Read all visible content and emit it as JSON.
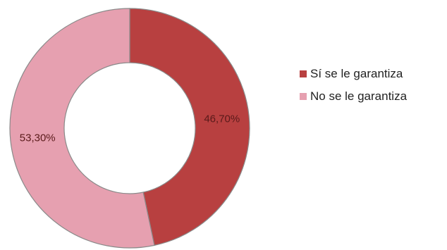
{
  "chart_data": {
    "type": "pie",
    "donut": true,
    "series": [
      {
        "name": "Sí se le garantiza",
        "value": 46.7,
        "label": "46,70%",
        "color": "#b84040"
      },
      {
        "name": "No se le garantiza",
        "value": 53.3,
        "label": "53,30%",
        "color": "#e6a0b0"
      }
    ],
    "legend_position": "right",
    "start_angle": "top, clockwise"
  },
  "legend": {
    "items": [
      {
        "label": "Sí se le garantiza",
        "color": "#b84040"
      },
      {
        "label": "No se le garantiza",
        "color": "#e6a0b0"
      }
    ]
  }
}
